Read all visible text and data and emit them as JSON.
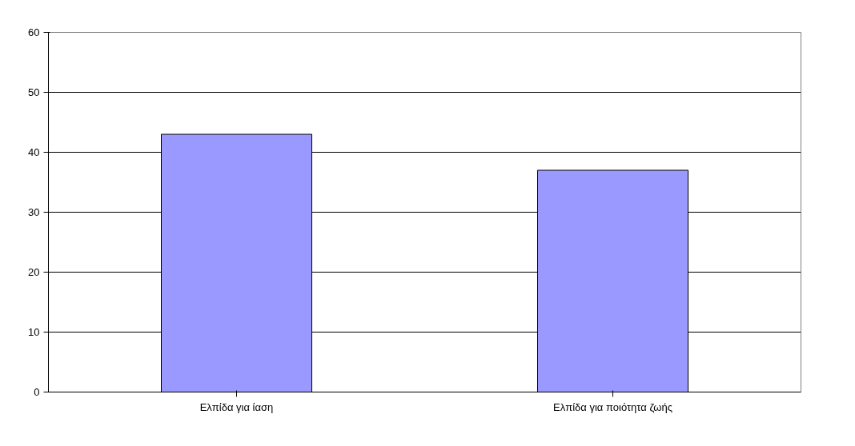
{
  "chart_data": {
    "type": "bar",
    "categories": [
      "Ελπίδα για ίαση",
      "Ελπίδα για ποιότητα ζωής"
    ],
    "values": [
      43,
      37
    ],
    "color": "#9999ff",
    "ylim": [
      0,
      60
    ],
    "yticks": [
      0,
      10,
      20,
      30,
      40,
      50,
      60
    ],
    "grid": "y"
  }
}
